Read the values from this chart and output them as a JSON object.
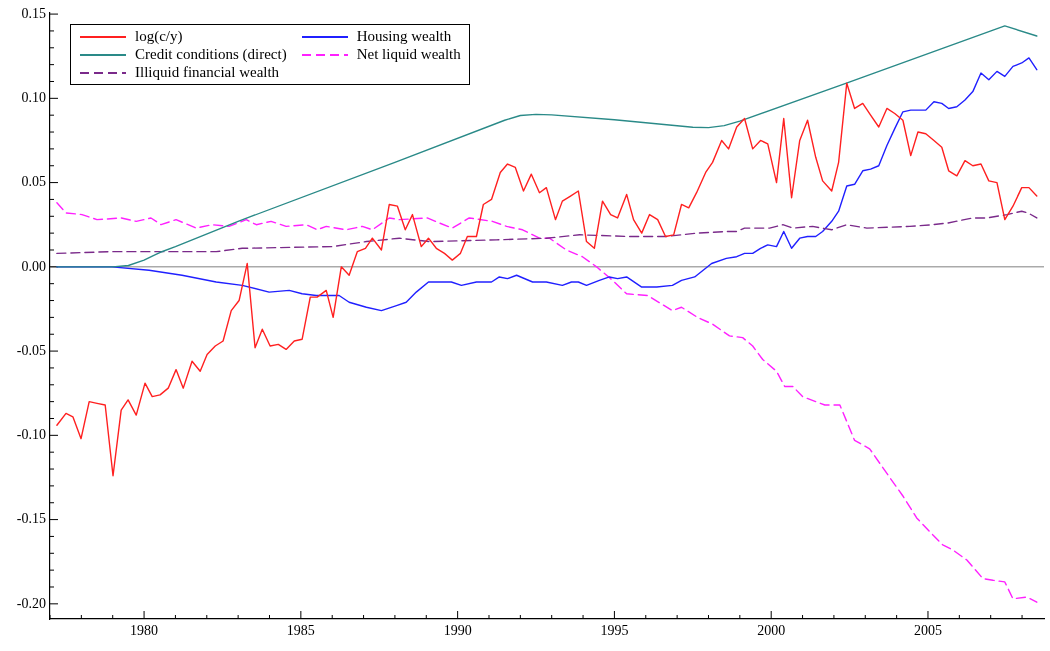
{
  "chart_data": {
    "type": "line",
    "legend": "top left",
    "grid": false,
    "xlim": [
      1977,
      2008.7
    ],
    "xticks": [
      {
        "value": 1977,
        "label": null
      },
      {
        "value": 1978,
        "label": null
      },
      {
        "value": 1979,
        "label": null
      },
      1980,
      {
        "value": 1981,
        "label": null
      },
      {
        "value": 1982,
        "label": null
      },
      {
        "value": 1983,
        "label": null
      },
      {
        "value": 1984,
        "label": null
      },
      1985,
      {
        "value": 1986,
        "label": null
      },
      {
        "value": 1987,
        "label": null
      },
      {
        "value": 1988,
        "label": null
      },
      {
        "value": 1989,
        "label": null
      },
      1990,
      {
        "value": 1991,
        "label": null
      },
      {
        "value": 1992,
        "label": null
      },
      {
        "value": 1993,
        "label": null
      },
      {
        "value": 1994,
        "label": null
      },
      1995,
      {
        "value": 1996,
        "label": null
      },
      {
        "value": 1997,
        "label": null
      },
      {
        "value": 1998,
        "label": null
      },
      {
        "value": 1999,
        "label": null
      },
      2000,
      {
        "value": 2001,
        "label": null
      },
      {
        "value": 2002,
        "label": null
      },
      {
        "value": 2003,
        "label": null
      },
      {
        "value": 2004,
        "label": null
      },
      2005,
      {
        "value": 2006,
        "label": null
      },
      {
        "value": 2007,
        "label": null
      },
      {
        "value": 2008,
        "label": null
      }
    ],
    "ylim": [
      -0.209,
      0.151
    ],
    "yticks": [
      {
        "value": -0.2,
        "label": "-0.20"
      },
      {
        "value": -0.19,
        "label": null
      },
      {
        "value": -0.18,
        "label": null
      },
      {
        "value": -0.17,
        "label": null
      },
      {
        "value": -0.16,
        "label": null
      },
      -0.15,
      {
        "value": -0.14,
        "label": null
      },
      {
        "value": -0.13,
        "label": null
      },
      {
        "value": -0.12,
        "label": null
      },
      {
        "value": -0.11,
        "label": null
      },
      {
        "value": -0.1,
        "label": "-0.10"
      },
      {
        "value": -0.09,
        "label": null
      },
      {
        "value": -0.08,
        "label": null
      },
      {
        "value": -0.07,
        "label": null
      },
      {
        "value": -0.06,
        "label": null
      },
      -0.05,
      {
        "value": -0.04,
        "label": null
      },
      {
        "value": -0.03,
        "label": null
      },
      {
        "value": -0.02,
        "label": null
      },
      {
        "value": -0.01,
        "label": null
      },
      {
        "value": 0,
        "label": "0.00"
      },
      {
        "value": 0.01,
        "label": null
      },
      {
        "value": 0.02,
        "label": null
      },
      {
        "value": 0.03,
        "label": null
      },
      {
        "value": 0.04,
        "label": null
      },
      0.05,
      {
        "value": 0.06,
        "label": null
      },
      {
        "value": 0.07,
        "label": null
      },
      {
        "value": 0.08,
        "label": null
      },
      {
        "value": 0.09,
        "label": null
      },
      {
        "value": 0.1,
        "label": "0.10"
      },
      {
        "value": 0.11,
        "label": null
      },
      {
        "value": 0.12,
        "label": null
      },
      {
        "value": 0.13,
        "label": null
      },
      {
        "value": 0.14,
        "label": null
      },
      0.15
    ],
    "ref_lines": [
      {
        "axis": "y",
        "value": 0,
        "color": "#808080"
      }
    ],
    "series": [
      {
        "name": "log(c/y)",
        "color": "#ff2020",
        "line_style": "solid",
        "x": [
          1977.22,
          1977.51,
          1977.73,
          1977.99,
          1978.25,
          1978.5,
          1978.76,
          1979.01,
          1979.27,
          1979.49,
          1979.75,
          1980.03,
          1980.26,
          1980.51,
          1980.77,
          1981.02,
          1981.25,
          1981.53,
          1981.79,
          1982.01,
          1982.27,
          1982.52,
          1982.78,
          1983.03,
          1983.29,
          1983.54,
          1983.77,
          1984.02,
          1984.28,
          1984.53,
          1984.79,
          1985.04,
          1985.3,
          1985.52,
          1985.81,
          1986.03,
          1986.29,
          1986.54,
          1986.8,
          1987.06,
          1987.28,
          1987.57,
          1987.82,
          1988.08,
          1988.33,
          1988.56,
          1988.84,
          1989.07,
          1989.32,
          1989.58,
          1989.83,
          1990.09,
          1990.31,
          1990.6,
          1990.82,
          1991.08,
          1991.36,
          1991.59,
          1991.84,
          1992.1,
          1992.35,
          1992.61,
          1992.83,
          1993.12,
          1993.34,
          1993.6,
          1993.85,
          1994.11,
          1994.36,
          1994.62,
          1994.88,
          1995.1,
          1995.39,
          1995.61,
          1995.87,
          1996.12,
          1996.38,
          1996.63,
          1996.89,
          1997.14,
          1997.37,
          1997.62,
          1997.91,
          1998.13,
          1998.42,
          1998.64,
          1998.9,
          1999.15,
          1999.41,
          1999.66,
          1999.89,
          2000.17,
          2000.4,
          2000.65,
          2000.91,
          2001.16,
          2001.42,
          2001.64,
          2001.93,
          2002.15,
          2002.41,
          2002.66,
          2002.92,
          2003.17,
          2003.43,
          2003.69,
          2003.94,
          2004.2,
          2004.45,
          2004.68,
          2004.93,
          2005.19,
          2005.44,
          2005.66,
          2005.92,
          2006.18,
          2006.43,
          2006.69,
          2006.94,
          2007.2,
          2007.45,
          2007.71,
          2007.99,
          2008.22,
          2008.47
        ],
        "values": [
          -0.094,
          -0.087,
          -0.089,
          -0.102,
          -0.08,
          -0.081,
          -0.082,
          -0.124,
          -0.085,
          -0.079,
          -0.088,
          -0.069,
          -0.077,
          -0.076,
          -0.072,
          -0.061,
          -0.072,
          -0.056,
          -0.062,
          -0.052,
          -0.047,
          -0.044,
          -0.026,
          -0.02,
          0.002,
          -0.048,
          -0.037,
          -0.047,
          -0.046,
          -0.049,
          -0.044,
          -0.043,
          -0.018,
          -0.018,
          -0.014,
          -0.03,
          0,
          -0.005,
          0.009,
          0.011,
          0.017,
          0.01,
          0.037,
          0.036,
          0.022,
          0.031,
          0.012,
          0.017,
          0.011,
          0.008,
          0.004,
          0.008,
          0.018,
          0.018,
          0.037,
          0.04,
          0.056,
          0.061,
          0.059,
          0.045,
          0.055,
          0.044,
          0.047,
          0.028,
          0.039,
          0.042,
          0.045,
          0.015,
          0.011,
          0.039,
          0.031,
          0.029,
          0.043,
          0.028,
          0.02,
          0.031,
          0.028,
          0.018,
          0.019,
          0.037,
          0.035,
          0.044,
          0.056,
          0.062,
          0.075,
          0.07,
          0.083,
          0.088,
          0.07,
          0.075,
          0.073,
          0.05,
          0.088,
          0.041,
          0.075,
          0.087,
          0.065,
          0.051,
          0.045,
          0.062,
          0.109,
          0.094,
          0.097,
          0.09,
          0.083,
          0.094,
          0.091,
          0.087,
          0.066,
          0.08,
          0.079,
          0.075,
          0.071,
          0.057,
          0.054,
          0.063,
          0.06,
          0.061,
          0.051,
          0.05,
          0.028,
          0.036,
          0.047,
          0.047,
          0.042
        ]
      },
      {
        "name": "Credit conditions (direct)",
        "color": "#2a8a88",
        "line_style": "solid",
        "x": [
          1977.22,
          1979,
          1979.5,
          1980,
          1980.5,
          1981,
          1983,
          1988,
          1991.5,
          1992,
          1992.5,
          1993,
          1995,
          1997.5,
          1998,
          1998.5,
          1999,
          2002.4,
          2007.45,
          2008.47
        ],
        "values": [
          0,
          0,
          0.0008,
          0.004,
          0.0085,
          0.012,
          0.027,
          0.062,
          0.087,
          0.0898,
          0.0905,
          0.0902,
          0.0873,
          0.0828,
          0.0826,
          0.0838,
          0.0865,
          0.109,
          0.143,
          0.137
        ]
      },
      {
        "name": "Illiquid financial wealth",
        "color": "#7a2a8a",
        "line_style": "dashed",
        "x": [
          1977.22,
          1978.98,
          1982.3,
          1983.13,
          1986,
          1987.09,
          1988.14,
          1989.1,
          1991.24,
          1992.83,
          1993.89,
          1995.48,
          1996.66,
          1997.62,
          1998.67,
          1998.9,
          1999.15,
          1999.95,
          2000.37,
          2000.69,
          2001.32,
          2001.93,
          2002.41,
          2003.05,
          2004.42,
          2005.15,
          2005.63,
          2006.43,
          2006.88,
          2007.52,
          2007.99,
          2008.19,
          2008.47
        ],
        "values": [
          0.008,
          0.009,
          0.009,
          0.011,
          0.012,
          0.015,
          0.017,
          0.015,
          0.016,
          0.017,
          0.019,
          0.018,
          0.018,
          0.02,
          0.021,
          0.021,
          0.023,
          0.023,
          0.025,
          0.023,
          0.024,
          0.022,
          0.025,
          0.023,
          0.024,
          0.025,
          0.026,
          0.029,
          0.029,
          0.031,
          0.033,
          0.032,
          0.029
        ]
      },
      {
        "name": "Housing wealth",
        "color": "#2020ff",
        "line_style": "solid",
        "x": [
          1977.22,
          1978.98,
          1980.16,
          1981.21,
          1982.3,
          1983.13,
          1983.99,
          1984.63,
          1985.04,
          1985.49,
          1986.22,
          1986.54,
          1987.09,
          1987.57,
          1988.05,
          1988.36,
          1988.68,
          1989.07,
          1989.42,
          1989.8,
          1990.12,
          1990.6,
          1991.08,
          1991.33,
          1991.59,
          1991.88,
          1992.39,
          1992.83,
          1993.34,
          1993.63,
          1993.85,
          1994.11,
          1994.52,
          1994.84,
          1995.1,
          1995.39,
          1995.87,
          1996.35,
          1996.85,
          1997.14,
          1997.56,
          1998.1,
          1998.57,
          1998.9,
          1999.15,
          1999.41,
          1999.66,
          1999.89,
          2000.17,
          2000.4,
          2000.65,
          2000.91,
          2001.16,
          2001.42,
          2001.64,
          2001.93,
          2002.15,
          2002.41,
          2002.66,
          2002.92,
          2003.17,
          2003.43,
          2003.69,
          2003.94,
          2004.2,
          2004.45,
          2004.68,
          2004.93,
          2005.19,
          2005.44,
          2005.66,
          2005.92,
          2006.18,
          2006.43,
          2006.69,
          2006.94,
          2007.2,
          2007.45,
          2007.71,
          2007.99,
          2008.22,
          2008.47
        ],
        "values": [
          0,
          0,
          -0.002,
          -0.005,
          -0.009,
          -0.011,
          -0.015,
          -0.014,
          -0.016,
          -0.017,
          -0.017,
          -0.021,
          -0.024,
          -0.026,
          -0.023,
          -0.021,
          -0.015,
          -0.009,
          -0.009,
          -0.009,
          -0.011,
          -0.009,
          -0.009,
          -0.006,
          -0.007,
          -0.005,
          -0.009,
          -0.009,
          -0.011,
          -0.009,
          -0.009,
          -0.011,
          -0.008,
          -0.006,
          -0.007,
          -0.006,
          -0.012,
          -0.012,
          -0.011,
          -0.008,
          -0.006,
          0.002,
          0.005,
          0.006,
          0.008,
          0.008,
          0.011,
          0.013,
          0.012,
          0.021,
          0.011,
          0.017,
          0.018,
          0.018,
          0.021,
          0.027,
          0.033,
          0.048,
          0.049,
          0.057,
          0.058,
          0.06,
          0.072,
          0.082,
          0.092,
          0.093,
          0.093,
          0.093,
          0.098,
          0.097,
          0.094,
          0.095,
          0.099,
          0.104,
          0.115,
          0.111,
          0.116,
          0.113,
          0.119,
          0.121,
          0.124,
          0.117
        ]
      },
      {
        "name": "Net liquid wealth",
        "color": "#ff20ff",
        "line_style": "dashed",
        "x": [
          1977.22,
          1977.51,
          1978.02,
          1978.5,
          1979.27,
          1979.75,
          1980.22,
          1980.54,
          1981.02,
          1981.66,
          1982.17,
          1982.71,
          1983.26,
          1983.58,
          1984.05,
          1984.53,
          1985.17,
          1985.52,
          1985.81,
          1986.45,
          1986.96,
          1987.28,
          1987.82,
          1988.14,
          1989.03,
          1989.42,
          1989.83,
          1990.37,
          1991.11,
          1991.56,
          1992.07,
          1992.61,
          1992.93,
          1993.47,
          1993.98,
          1994.43,
          1994.94,
          1995.39,
          1996.06,
          1996.85,
          1997.14,
          1997.65,
          1998.13,
          1998.67,
          1999.09,
          1999.41,
          1999.73,
          2000.17,
          2000.43,
          2000.69,
          2001,
          2001.71,
          2002.19,
          2002.66,
          2003.14,
          2003.78,
          2004.2,
          2004.64,
          2005.15,
          2005.47,
          2005.79,
          2006.24,
          2006.75,
          2007.07,
          2007.45,
          2007.71,
          2008.15,
          2008.47
        ],
        "values": [
          0.038,
          0.032,
          0.031,
          0.028,
          0.029,
          0.027,
          0.029,
          0.025,
          0.028,
          0.023,
          0.025,
          0.024,
          0.028,
          0.025,
          0.027,
          0.024,
          0.025,
          0.022,
          0.024,
          0.022,
          0.024,
          0.022,
          0.029,
          0.028,
          0.029,
          0.026,
          0.023,
          0.029,
          0.027,
          0.024,
          0.022,
          0.017,
          0.017,
          0.01,
          0.006,
          0,
          -0.008,
          -0.016,
          -0.017,
          -0.026,
          -0.024,
          -0.03,
          -0.034,
          -0.041,
          -0.042,
          -0.047,
          -0.055,
          -0.062,
          -0.071,
          -0.071,
          -0.077,
          -0.082,
          -0.082,
          -0.103,
          -0.108,
          -0.125,
          -0.136,
          -0.149,
          -0.159,
          -0.165,
          -0.168,
          -0.174,
          -0.185,
          -0.186,
          -0.187,
          -0.197,
          -0.196,
          -0.199
        ]
      }
    ]
  }
}
